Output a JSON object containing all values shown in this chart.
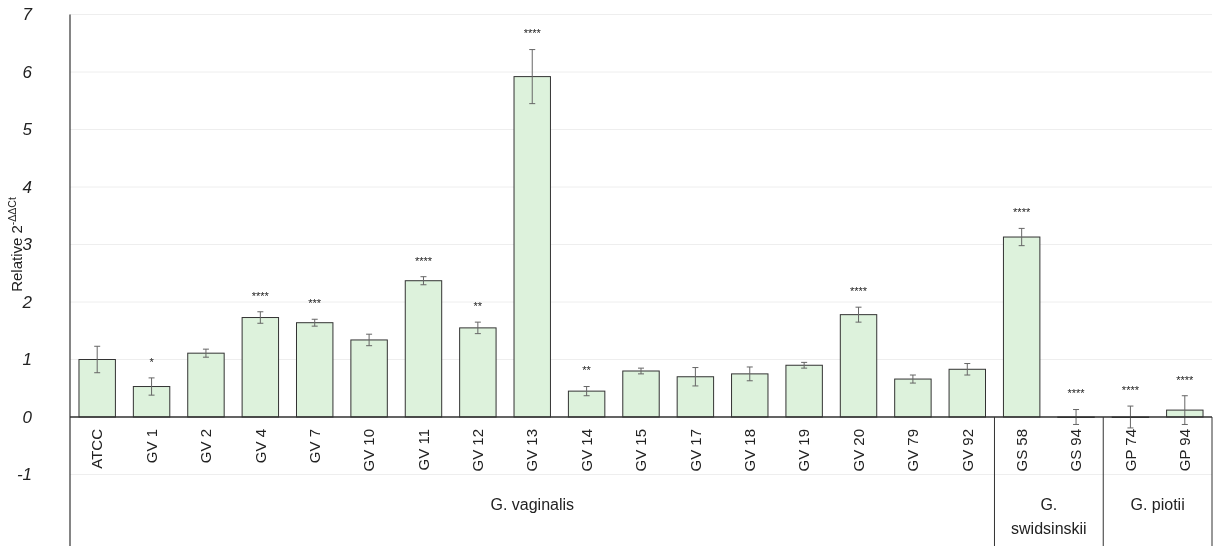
{
  "chart_data": {
    "type": "bar",
    "ylabel": "Relative 2$^{-ΔΔCt}$",
    "categories": [
      "ATCC",
      "GV 1",
      "GV 2",
      "GV 4",
      "GV 7",
      "GV 10",
      "GV 11",
      "GV 12",
      "GV 13",
      "GV 14",
      "GV 15",
      "GV 17",
      "GV 18",
      "GV 19",
      "GV 20",
      "GV 79",
      "GV 92",
      "GS 58",
      "GS 94",
      "GP 74",
      "GP 94"
    ],
    "series": [
      {
        "color": "#ddf2dc",
        "values": [
          1.0,
          0.53,
          1.11,
          1.73,
          1.64,
          1.34,
          2.37,
          1.55,
          5.92,
          0.45,
          0.8,
          0.7,
          0.75,
          0.9,
          1.78,
          0.66,
          0.83,
          3.13,
          0,
          0,
          0.12
        ],
        "errors": [
          0.23,
          0.15,
          0.07,
          0.1,
          0.06,
          0.1,
          0.07,
          0.1,
          0.47,
          0.08,
          0.05,
          0.16,
          0.12,
          0.05,
          0.13,
          0.07,
          0.1,
          0.15,
          0.13,
          0.19,
          0.25
        ]
      }
    ],
    "ylim": [
      -2.2,
      7
    ],
    "yticks": [
      -1,
      0,
      1,
      2,
      3,
      4,
      5,
      6,
      7
    ],
    "grid": "y",
    "annotations": [
      {
        "text": "*",
        "x": "GV 1",
        "y": 0.53
      },
      {
        "text": "****",
        "x": "GV 4",
        "y": 1.73
      },
      {
        "text": "***",
        "x": "GV 7",
        "y": 1.64
      },
      {
        "text": "****",
        "x": "GV 11",
        "y": 2.37
      },
      {
        "text": "**",
        "x": "GV 12",
        "y": 1.55
      },
      {
        "text": "****",
        "x": "GV 13",
        "y": 6.39
      },
      {
        "text": "**",
        "x": "GV 14",
        "y": 0.45
      },
      {
        "text": "****",
        "x": "GV 20",
        "y": 1.78
      },
      {
        "text": "****",
        "x": "GS 58",
        "y": 3.13
      },
      {
        "text": "****",
        "x": "GS 94",
        "y": 0
      },
      {
        "text": "****",
        "x": "GP 74",
        "y": 0
      },
      {
        "text": "****",
        "x": "GP 94",
        "y": 0.12
      },
      "G. vaginalis",
      "G. swidsinskii",
      "G. piotii"
    ]
  }
}
